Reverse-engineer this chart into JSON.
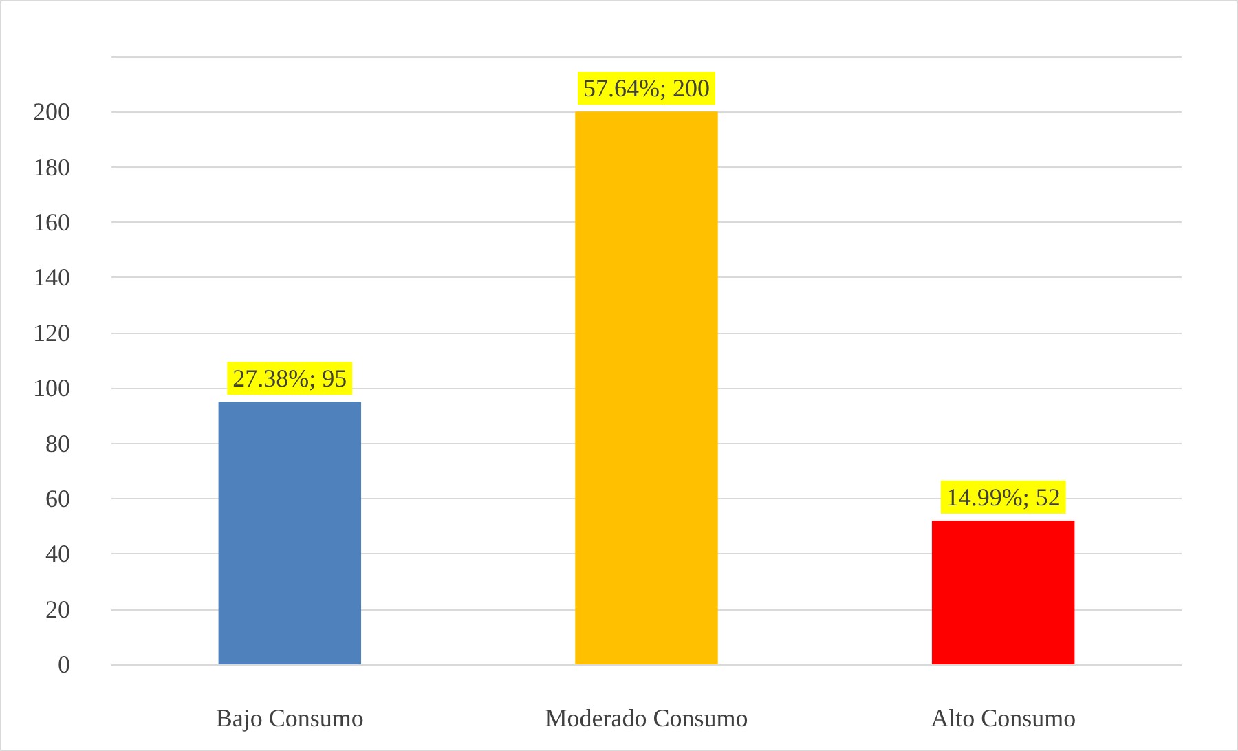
{
  "chart_data": {
    "type": "bar",
    "categories": [
      "Bajo Consumo",
      "Moderado Consumo",
      "Alto Consumo"
    ],
    "values": [
      95,
      200,
      52
    ],
    "colors": [
      "#4f81bd",
      "#ffc000",
      "#ff0000"
    ],
    "value_labels": [
      "27.38%; 95",
      "57.64%; 200",
      "14.99%; 52"
    ],
    "ylim": [
      0,
      220
    ],
    "yticks": [
      0,
      20,
      40,
      60,
      80,
      100,
      120,
      140,
      160,
      180,
      200,
      {
        "value": 220,
        "label": null
      }
    ],
    "grid": "y"
  }
}
